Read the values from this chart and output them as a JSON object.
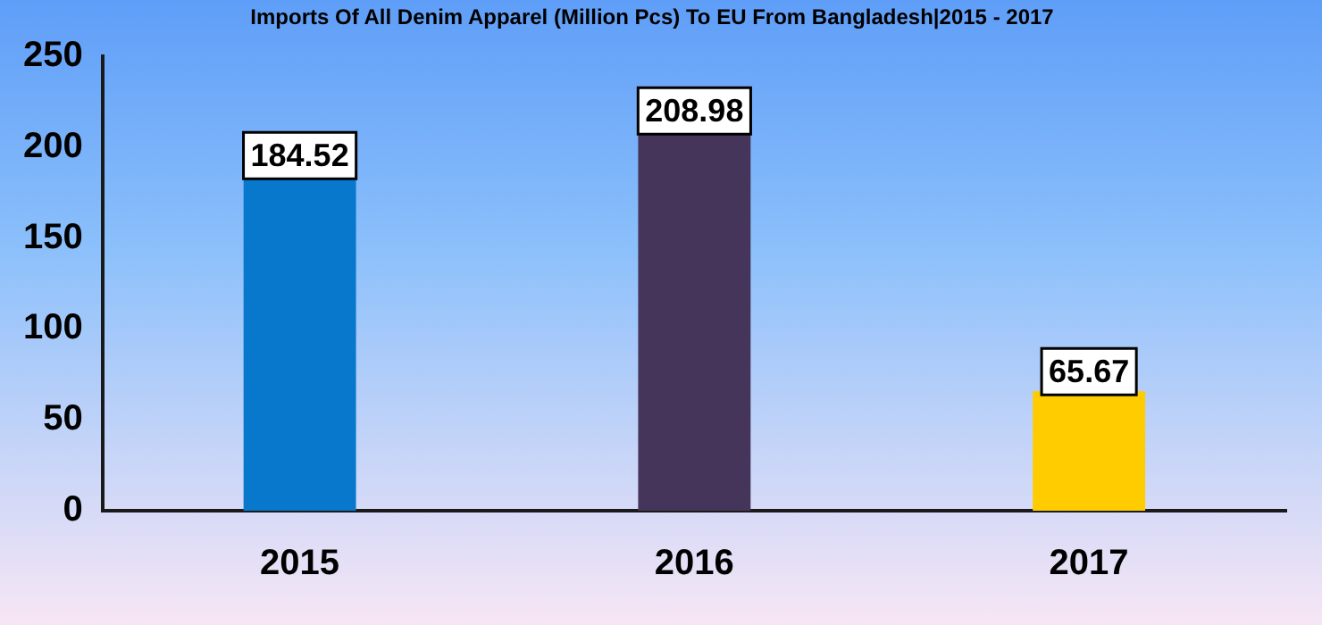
{
  "chart_data": {
    "type": "bar",
    "title": "Imports Of All Denim Apparel (Million Pcs) To EU From Bangladesh|2015 - 2017",
    "categories": [
      "2015",
      "2016",
      "2017"
    ],
    "values": [
      184.52,
      208.98,
      65.67
    ],
    "colors": [
      "#0878cc",
      "#45355a",
      "#ffcc00"
    ],
    "ylim": [
      0,
      250
    ],
    "yticks": [
      0,
      50,
      100,
      150,
      200,
      250
    ],
    "grid": false,
    "data_labels": true
  }
}
